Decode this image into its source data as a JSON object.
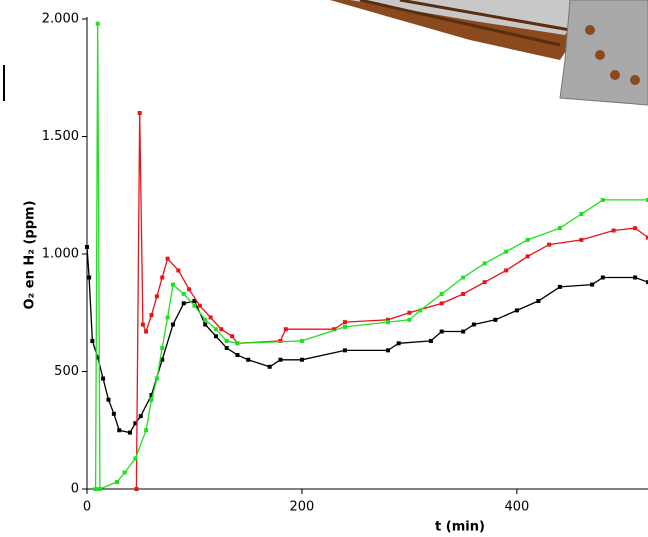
{
  "chart_data": {
    "type": "line",
    "x_label": "t (min)",
    "y_label": "O₂ en H₂ (ppm)",
    "xlim": [
      0,
      522
    ],
    "xticks": [
      0,
      200,
      400
    ],
    "ylim": [
      0,
      2000
    ],
    "yticks": [
      0,
      500,
      {
        "value": 1000,
        "label": "1.000"
      },
      {
        "value": 1500,
        "label": "1.500"
      },
      {
        "value": 2000,
        "label": "2.000"
      }
    ],
    "series": [
      {
        "color": "#000000",
        "x": [
          0,
          2,
          5,
          10,
          15,
          20,
          25,
          30,
          40,
          45,
          50,
          60,
          70,
          80,
          90,
          100,
          110,
          120,
          130,
          140,
          150,
          170,
          180,
          200,
          240,
          280,
          290,
          320,
          330,
          350,
          360,
          380,
          400,
          420,
          440,
          470,
          480,
          510,
          522
        ],
        "values": [
          1030,
          900,
          630,
          560,
          470,
          380,
          320,
          250,
          240,
          280,
          310,
          400,
          550,
          700,
          790,
          800,
          700,
          650,
          600,
          570,
          550,
          520,
          550,
          550,
          590,
          590,
          620,
          630,
          670,
          670,
          700,
          720,
          760,
          800,
          860,
          870,
          900,
          900,
          880
        ]
      },
      {
        "color": "#e8141a",
        "x": [
          46,
          49,
          52,
          55,
          60,
          65,
          70,
          75,
          85,
          95,
          105,
          115,
          125,
          135,
          140,
          180,
          185,
          230,
          240,
          280,
          300,
          330,
          350,
          370,
          390,
          410,
          430,
          460,
          490,
          510,
          522
        ],
        "values": [
          0,
          1600,
          700,
          670,
          740,
          820,
          900,
          980,
          930,
          850,
          780,
          730,
          680,
          650,
          620,
          630,
          680,
          680,
          710,
          720,
          750,
          790,
          830,
          880,
          930,
          990,
          1040,
          1060,
          1100,
          1110,
          1070
        ]
      },
      {
        "color": "#1fe01f",
        "x": [
          8,
          10,
          12,
          28,
          35,
          45,
          55,
          60,
          65,
          70,
          75,
          80,
          90,
          100,
          110,
          120,
          130,
          140,
          200,
          240,
          280,
          300,
          310,
          330,
          350,
          370,
          390,
          410,
          440,
          460,
          480,
          522
        ],
        "values": [
          0,
          1980,
          0,
          30,
          70,
          130,
          250,
          380,
          470,
          600,
          730,
          870,
          830,
          780,
          720,
          680,
          630,
          620,
          630,
          690,
          710,
          720,
          760,
          830,
          900,
          960,
          1010,
          1060,
          1110,
          1170,
          1230,
          1230
        ]
      }
    ]
  }
}
